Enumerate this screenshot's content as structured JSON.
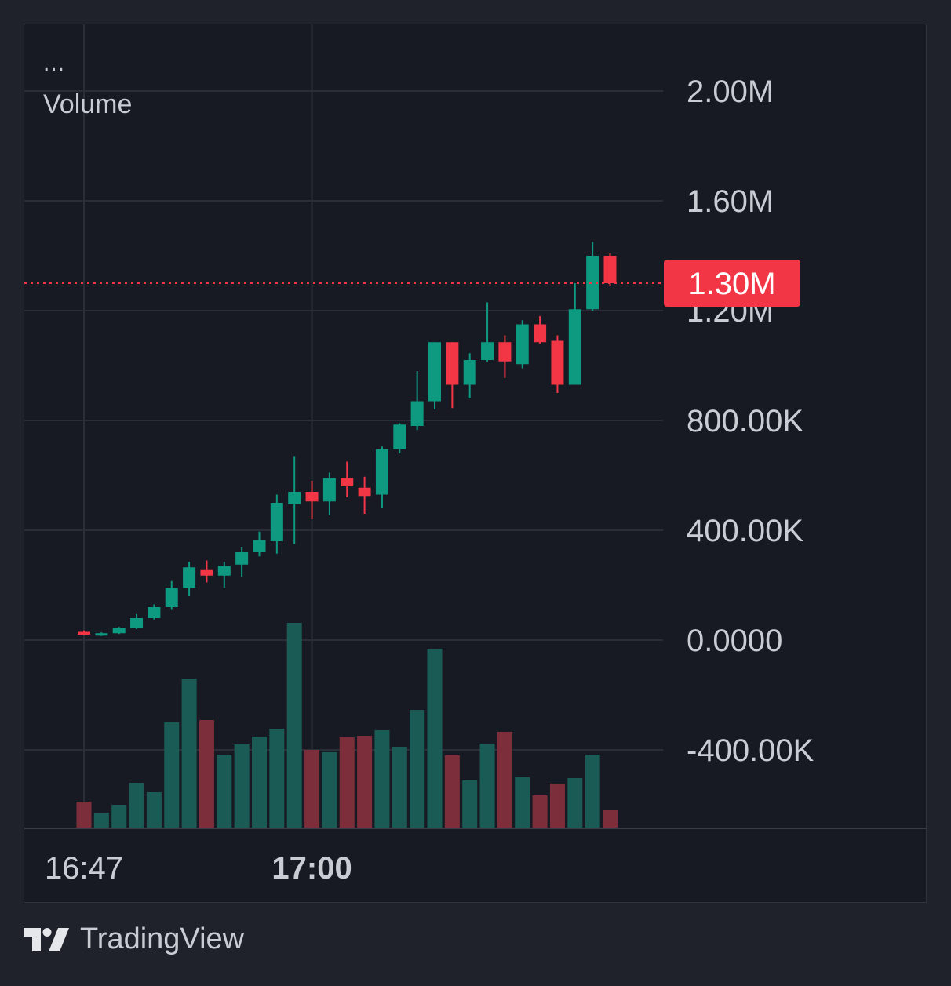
{
  "indicator": {
    "menu": "...",
    "label": "Volume"
  },
  "brand": {
    "name": "TradingView",
    "logo_icon": "tradingview-logo-icon"
  },
  "colors": {
    "up": "#0e9981",
    "down": "#f23645",
    "up_volume": "#1a5c55",
    "down_volume": "#7c2e3a",
    "grid": "#2b2e38",
    "axis_text": "#c9ccd3"
  },
  "chart_data": {
    "type": "candlestick",
    "title": "",
    "ylim": [
      -600000,
      2200000
    ],
    "y_ticks": [
      {
        "value": 2000000,
        "label": "2.00M"
      },
      {
        "value": 1600000,
        "label": "1.60M"
      },
      {
        "value": 1200000,
        "label": "1.20M"
      },
      {
        "value": 800000,
        "label": "800.00K"
      },
      {
        "value": 400000,
        "label": "400.00K"
      },
      {
        "value": 0,
        "label": "0.0000"
      },
      {
        "value": -400000,
        "label": "-400.00K"
      }
    ],
    "x_ticks": [
      {
        "index": 0,
        "label": "16:47",
        "bold": false
      },
      {
        "index": 13,
        "label": "17:00",
        "bold": true
      }
    ],
    "last_price": {
      "value": 1300000,
      "label": "1.30M"
    },
    "candles": [
      {
        "time": "16:47",
        "open": 30000,
        "high": 35000,
        "low": 20000,
        "close": 20000
      },
      {
        "time": "16:48",
        "open": 20000,
        "high": 28000,
        "low": 15000,
        "close": 25000
      },
      {
        "time": "16:49",
        "open": 25000,
        "high": 48000,
        "low": 22000,
        "close": 45000
      },
      {
        "time": "16:50",
        "open": 45000,
        "high": 95000,
        "low": 40000,
        "close": 80000
      },
      {
        "time": "16:51",
        "open": 80000,
        "high": 130000,
        "low": 75000,
        "close": 120000
      },
      {
        "time": "16:52",
        "open": 120000,
        "high": 215000,
        "low": 110000,
        "close": 190000
      },
      {
        "time": "16:53",
        "open": 190000,
        "high": 285000,
        "low": 160000,
        "close": 265000
      },
      {
        "time": "16:54",
        "open": 255000,
        "high": 290000,
        "low": 210000,
        "close": 235000
      },
      {
        "time": "16:55",
        "open": 235000,
        "high": 285000,
        "low": 190000,
        "close": 270000
      },
      {
        "time": "16:56",
        "open": 275000,
        "high": 340000,
        "low": 230000,
        "close": 320000
      },
      {
        "time": "16:57",
        "open": 320000,
        "high": 395000,
        "low": 305000,
        "close": 365000
      },
      {
        "time": "16:58",
        "open": 360000,
        "high": 530000,
        "low": 315000,
        "close": 500000
      },
      {
        "time": "16:59",
        "open": 495000,
        "high": 670000,
        "low": 350000,
        "close": 540000
      },
      {
        "time": "17:00",
        "open": 540000,
        "high": 580000,
        "low": 440000,
        "close": 505000
      },
      {
        "time": "17:01",
        "open": 505000,
        "high": 610000,
        "low": 455000,
        "close": 590000
      },
      {
        "time": "17:02",
        "open": 590000,
        "high": 650000,
        "low": 520000,
        "close": 560000
      },
      {
        "time": "17:03",
        "open": 555000,
        "high": 595000,
        "low": 460000,
        "close": 525000
      },
      {
        "time": "17:04",
        "open": 530000,
        "high": 705000,
        "low": 480000,
        "close": 695000
      },
      {
        "time": "17:05",
        "open": 695000,
        "high": 790000,
        "low": 680000,
        "close": 785000
      },
      {
        "time": "17:06",
        "open": 780000,
        "high": 980000,
        "low": 765000,
        "close": 870000
      },
      {
        "time": "17:07",
        "open": 870000,
        "high": 1085000,
        "low": 840000,
        "close": 1085000
      },
      {
        "time": "17:08",
        "open": 1085000,
        "high": 1085000,
        "low": 845000,
        "close": 930000
      },
      {
        "time": "17:09",
        "open": 930000,
        "high": 1045000,
        "low": 880000,
        "close": 1020000
      },
      {
        "time": "17:10",
        "open": 1020000,
        "high": 1230000,
        "low": 1015000,
        "close": 1085000
      },
      {
        "time": "17:11",
        "open": 1085000,
        "high": 1110000,
        "low": 955000,
        "close": 1015000
      },
      {
        "time": "17:12",
        "open": 1005000,
        "high": 1165000,
        "low": 990000,
        "close": 1150000
      },
      {
        "time": "17:13",
        "open": 1150000,
        "high": 1180000,
        "low": 1080000,
        "close": 1085000
      },
      {
        "time": "17:14",
        "open": 1090000,
        "high": 1110000,
        "low": 900000,
        "close": 930000
      },
      {
        "time": "17:15",
        "open": 930000,
        "high": 1300000,
        "low": 930000,
        "close": 1205000
      },
      {
        "time": "17:16",
        "open": 1205000,
        "high": 1450000,
        "low": 1200000,
        "close": 1400000
      },
      {
        "time": "17:17",
        "open": 1400000,
        "high": 1410000,
        "low": 1290000,
        "close": 1300000
      }
    ],
    "volume": [
      33,
      19,
      29,
      57,
      45,
      134,
      190,
      137,
      93,
      106,
      116,
      126,
      261,
      99,
      96,
      115,
      117,
      124,
      103,
      150,
      228,
      92,
      60,
      107,
      122,
      64,
      41,
      56,
      63,
      93,
      23
    ],
    "volume_unit": "relative (no volume scale printed)"
  }
}
